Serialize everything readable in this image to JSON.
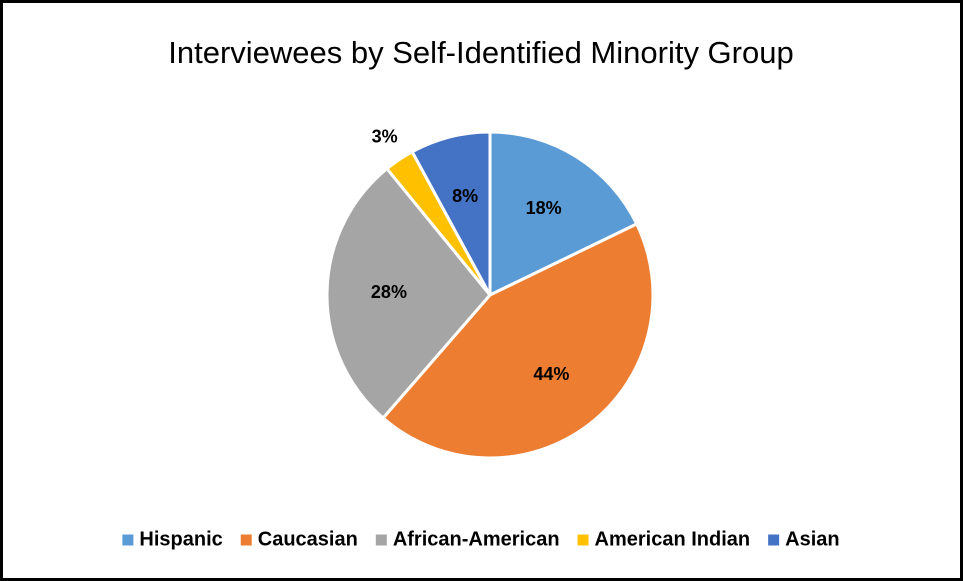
{
  "chart_data": {
    "type": "pie",
    "title": "Interviewees by Self-Identified Minority Group",
    "categories": [
      "Hispanic",
      "Caucasian",
      "African-American",
      "American Indian",
      "Asian"
    ],
    "values": [
      18,
      44,
      28,
      3,
      8
    ],
    "value_labels": [
      "18%",
      "44%",
      "28%",
      "3%",
      "8%"
    ],
    "colors": [
      "#5b9bd5",
      "#ed7d31",
      "#a5a5a5",
      "#ffc000",
      "#4472c4"
    ],
    "legend": "bottom"
  }
}
